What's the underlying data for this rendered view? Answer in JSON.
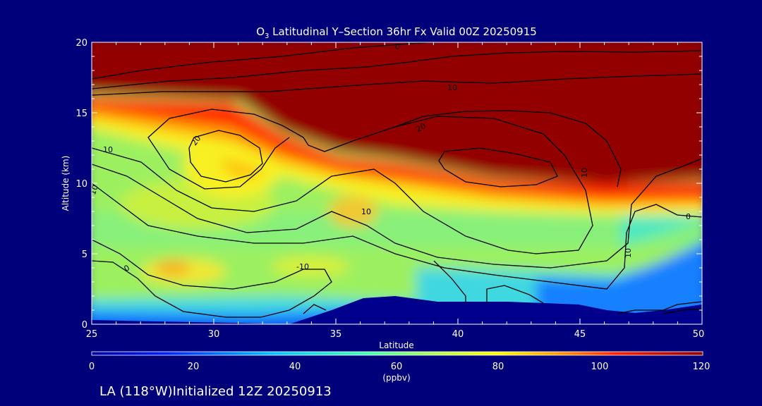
{
  "chart_data": {
    "type": "heatmap",
    "title_prefix": "O",
    "title_sub": "3",
    "title_rest": " Latitudinal Y–Section 36hr  Fx Valid 00Z 20250915",
    "xlabel": "Latitude",
    "ylabel": "Altitude (km)",
    "xlim": [
      25,
      50
    ],
    "ylim": [
      0,
      20
    ],
    "x_ticks": [
      "25",
      "30",
      "35",
      "40",
      "45",
      "50"
    ],
    "y_ticks": [
      "0",
      "5",
      "10",
      "15",
      "20"
    ],
    "colorbar": {
      "range": [
        0,
        120
      ],
      "ticks": [
        "0",
        "20",
        "40",
        "60",
        "80",
        "100",
        "120"
      ],
      "unit": "(ppbv)"
    },
    "contour_labels": [
      "0",
      "10",
      "20",
      "10",
      "10",
      "20",
      "10",
      "0",
      "10",
      "0",
      "-10",
      "10"
    ],
    "footer": "LA (118°W)Initialized 12Z 20250913",
    "background_color": "#00007a",
    "terrain_color": "#00008c"
  }
}
